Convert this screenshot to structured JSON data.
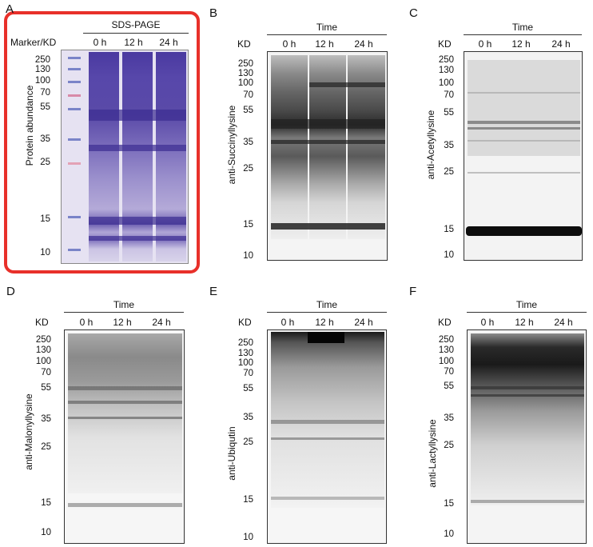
{
  "panels": {
    "A": {
      "letter": "A",
      "header": "SDS-PAGE",
      "marker_label": "Marker/KD",
      "lanes": [
        "0 h",
        "12 h",
        "24 h"
      ],
      "y_label": "Protein abundance",
      "mw": [
        "250",
        "130",
        "100",
        "70",
        "55",
        "35",
        "25",
        "15",
        "10"
      ]
    },
    "B": {
      "letter": "B",
      "header": "Time",
      "kd_label": "KD",
      "lanes": [
        "0 h",
        "12 h",
        "24 h"
      ],
      "y_label": "anti-Succinyllysine",
      "mw": [
        "250",
        "130",
        "100",
        "70",
        "55",
        "35",
        "25",
        "15",
        "10"
      ]
    },
    "C": {
      "letter": "C",
      "header": "Time",
      "kd_label": "KD",
      "lanes": [
        "0 h",
        "12 h",
        "24 h"
      ],
      "y_label": "anti-Acetyllysine",
      "mw": [
        "250",
        "130",
        "100",
        "70",
        "55",
        "35",
        "25",
        "15",
        "10"
      ]
    },
    "D": {
      "letter": "D",
      "header": "Time",
      "kd_label": "KD",
      "lanes": [
        "0 h",
        "12 h",
        "24 h"
      ],
      "y_label": "anti-Malonyllysine",
      "mw": [
        "250",
        "130",
        "100",
        "70",
        "55",
        "35",
        "25",
        "15",
        "10"
      ]
    },
    "E": {
      "letter": "E",
      "header": "Time",
      "kd_label": "KD",
      "lanes": [
        "0 h",
        "12 h",
        "24 h"
      ],
      "y_label": "anti-Ubiqutin",
      "mw": [
        "250",
        "130",
        "100",
        "70",
        "55",
        "35",
        "25",
        "15",
        "10"
      ]
    },
    "F": {
      "letter": "F",
      "header": "Time",
      "kd_label": "KD",
      "lanes": [
        "0 h",
        "12 h",
        "24 h"
      ],
      "y_label": "anti-Lactyllysine",
      "mw": [
        "250",
        "130",
        "100",
        "70",
        "55",
        "35",
        "25",
        "15",
        "10"
      ]
    }
  },
  "colors": {
    "highlight": "#e8302a",
    "coomassie": "#5a4aa8"
  }
}
